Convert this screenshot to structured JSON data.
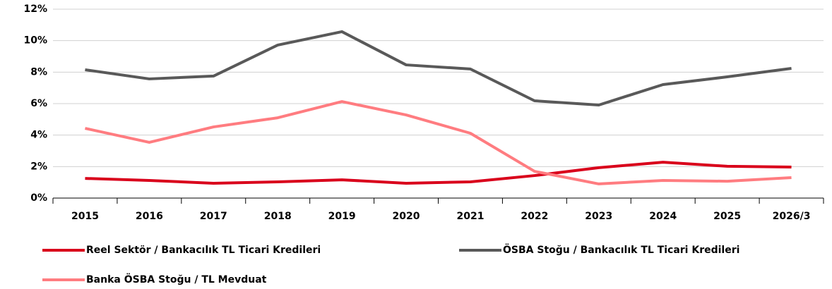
{
  "chart_data": {
    "type": "line",
    "categories": [
      "2015",
      "2016",
      "2017",
      "2018",
      "2019",
      "2020",
      "2021",
      "2022",
      "2023",
      "2024",
      "2025",
      "2026/3"
    ],
    "series": [
      {
        "name": "Reel Sektör / Bankacılık TL Ticari Kredileri",
        "color": "#d9001b",
        "values": [
          1.25,
          1.12,
          0.94,
          1.03,
          1.16,
          0.94,
          1.03,
          1.43,
          1.93,
          2.28,
          2.02,
          1.97
        ]
      },
      {
        "name": "ÖSBA Stoğu / Bankacılık TL Ticari Kredileri",
        "color": "#595959",
        "values": [
          8.15,
          7.57,
          7.75,
          9.72,
          10.57,
          8.46,
          8.2,
          6.18,
          5.91,
          7.21,
          7.7,
          8.24
        ]
      },
      {
        "name": "Banka ÖSBA Stoğu / TL Mevduat",
        "color": "#ff7c80",
        "values": [
          4.43,
          3.54,
          4.52,
          5.1,
          6.13,
          5.28,
          4.12,
          1.7,
          0.9,
          1.12,
          1.07,
          1.3
        ]
      }
    ],
    "ylim": [
      0,
      12
    ],
    "yticks": [
      {
        "value": 0,
        "label": "0%"
      },
      {
        "value": 2,
        "label": "2%"
      },
      {
        "value": 4,
        "label": "4%"
      },
      {
        "value": 6,
        "label": "6%"
      },
      {
        "value": 8,
        "label": "8%"
      },
      {
        "value": 10,
        "label": "10%"
      },
      {
        "value": 12,
        "label": "12%"
      }
    ],
    "grid": true,
    "legend": "bottom"
  }
}
